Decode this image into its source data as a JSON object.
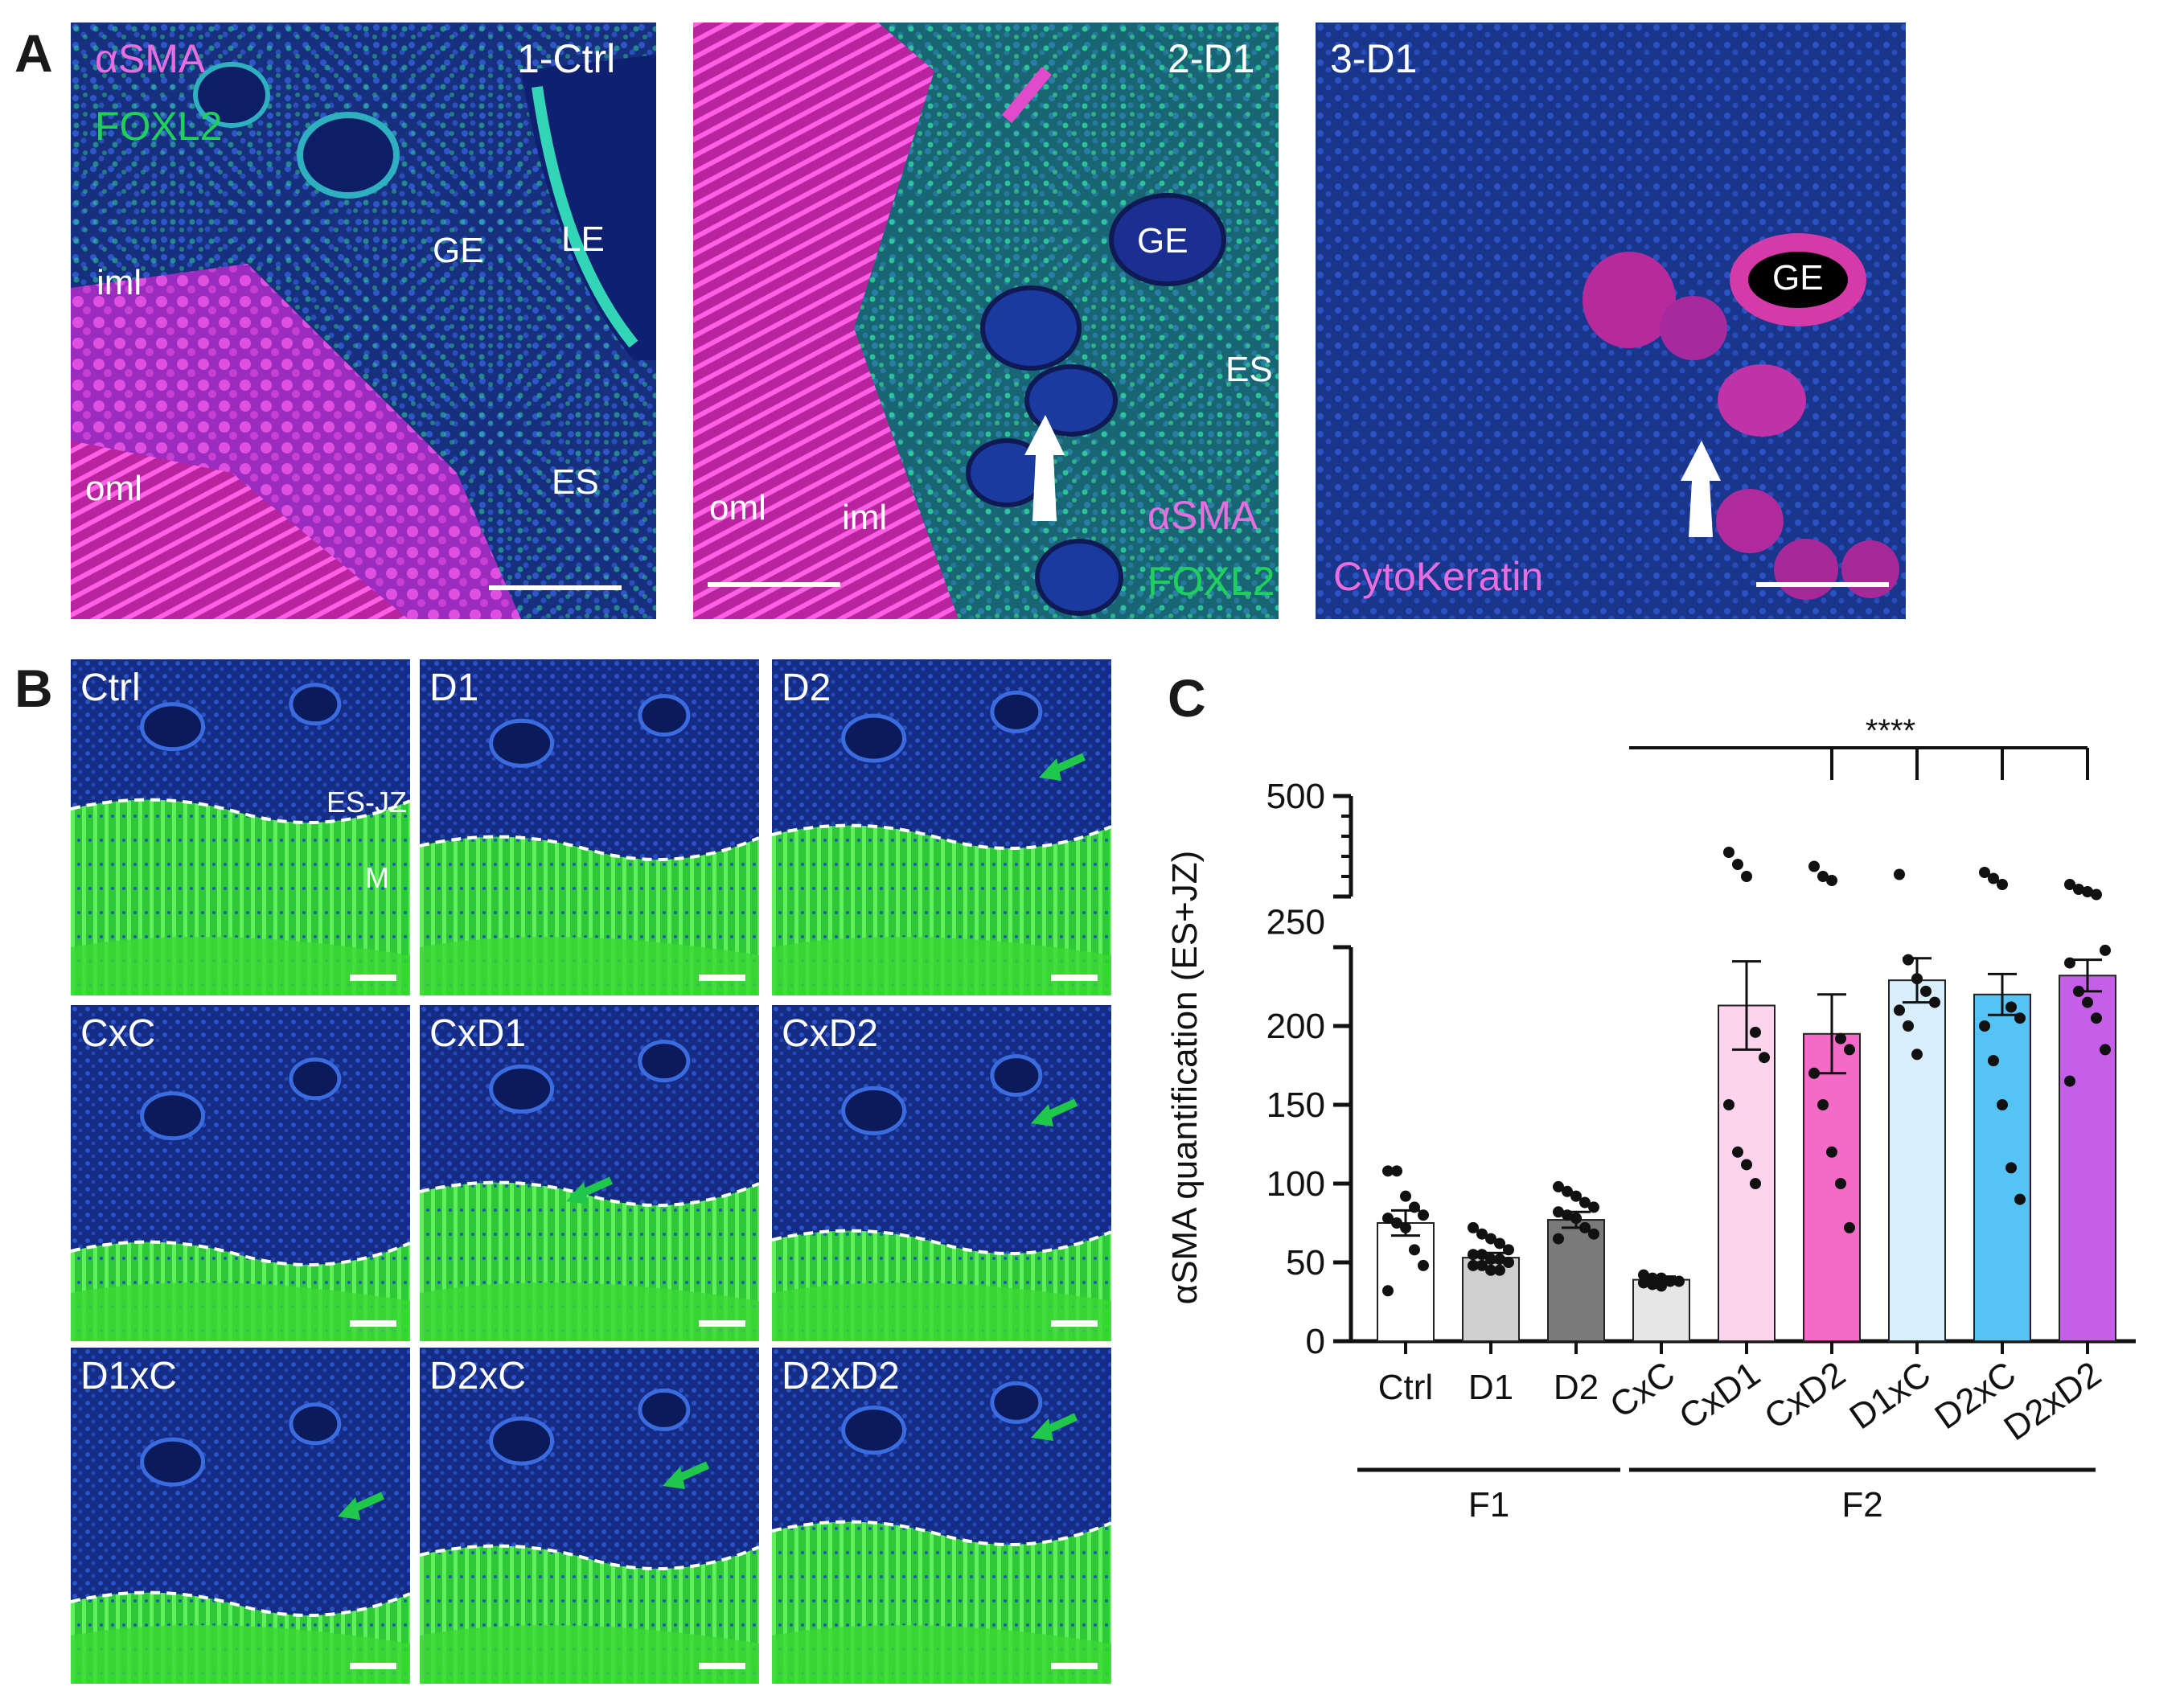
{
  "panels": {
    "A": {
      "letter": "A",
      "images": [
        {
          "title": "1-Ctrl",
          "stain1": "αSMA",
          "stain2": "FOXL2",
          "regions": [
            "GE",
            "LE",
            "iml",
            "oml",
            "ES"
          ]
        },
        {
          "title": "2-D1",
          "stain1": "αSMA",
          "stain2": "FOXL2",
          "regions": [
            "GE",
            "ES",
            "oml",
            "iml"
          ]
        },
        {
          "title": "3-D1",
          "stain1": "CytoKeratin",
          "regions": [
            "GE"
          ]
        }
      ]
    },
    "B": {
      "letter": "B",
      "tiles": [
        "Ctrl",
        "D1",
        "D2",
        "CxC",
        "CxD1",
        "CxD2",
        "D1xC",
        "D2xC",
        "D2xD2"
      ],
      "region_labels": {
        "upper": "ES-JZ",
        "lower": "M"
      }
    },
    "C": {
      "letter": "C"
    }
  },
  "colors": {
    "magenta": "#e86ee0",
    "green": "#1fd05a",
    "nuclei": "#1f3fa8",
    "white": "#ffffff"
  },
  "chart_data": {
    "type": "bar",
    "ylabel": "αSMA quantification (ES+JZ)",
    "ylim_lower": [
      0,
      250
    ],
    "ylim_upper": [
      250,
      500
    ],
    "broken_axis": true,
    "y_ticks": [
      0,
      50,
      100,
      150,
      200,
      250,
      500
    ],
    "categories": [
      "Ctrl",
      "D1",
      "D2",
      "CxC",
      "CxD1",
      "CxD2",
      "D1xC",
      "D2xC",
      "D2xD2"
    ],
    "means": [
      75,
      53,
      77,
      39,
      213,
      195,
      229,
      220,
      232
    ],
    "sem": [
      8,
      3,
      5,
      2,
      28,
      25,
      14,
      13,
      10
    ],
    "bar_colors": [
      "#ffffff",
      "#cfcfcf",
      "#7a7a7a",
      "#e6e6e6",
      "#fcd4ee",
      "#f36bc7",
      "#d9eefb",
      "#55c3f3",
      "#c55fe8"
    ],
    "points": [
      [
        108,
        108,
        92,
        85,
        80,
        78,
        75,
        72,
        58,
        48,
        32
      ],
      [
        72,
        68,
        65,
        62,
        58,
        55,
        55,
        52,
        52,
        50,
        48,
        48,
        45,
        45
      ],
      [
        98,
        95,
        92,
        88,
        85,
        82,
        80,
        78,
        72,
        68,
        65
      ],
      [
        42,
        40,
        40,
        38,
        38,
        37,
        36,
        35
      ],
      [
        360,
        330,
        300,
        196,
        180,
        150,
        120,
        112,
        100
      ],
      [
        325,
        300,
        290,
        192,
        185,
        170,
        150,
        120,
        100,
        72
      ],
      [
        305,
        242,
        230,
        222,
        215,
        210,
        200,
        182
      ],
      [
        310,
        295,
        280,
        212,
        205,
        200,
        178,
        150,
        110,
        90
      ],
      [
        280,
        268,
        262,
        255,
        248,
        240,
        222,
        215,
        205,
        185,
        165
      ]
    ],
    "groups": [
      {
        "label": "F1",
        "members": [
          "Ctrl",
          "D1",
          "D2"
        ]
      },
      {
        "label": "F2",
        "members": [
          "CxC",
          "CxD1",
          "CxD2",
          "D1xC",
          "D2xC",
          "D2xD2"
        ]
      }
    ],
    "significance": {
      "label": "****",
      "reference": "CxC",
      "targets": [
        "CxD2",
        "D1xC",
        "D2xC",
        "D2xD2"
      ]
    }
  }
}
